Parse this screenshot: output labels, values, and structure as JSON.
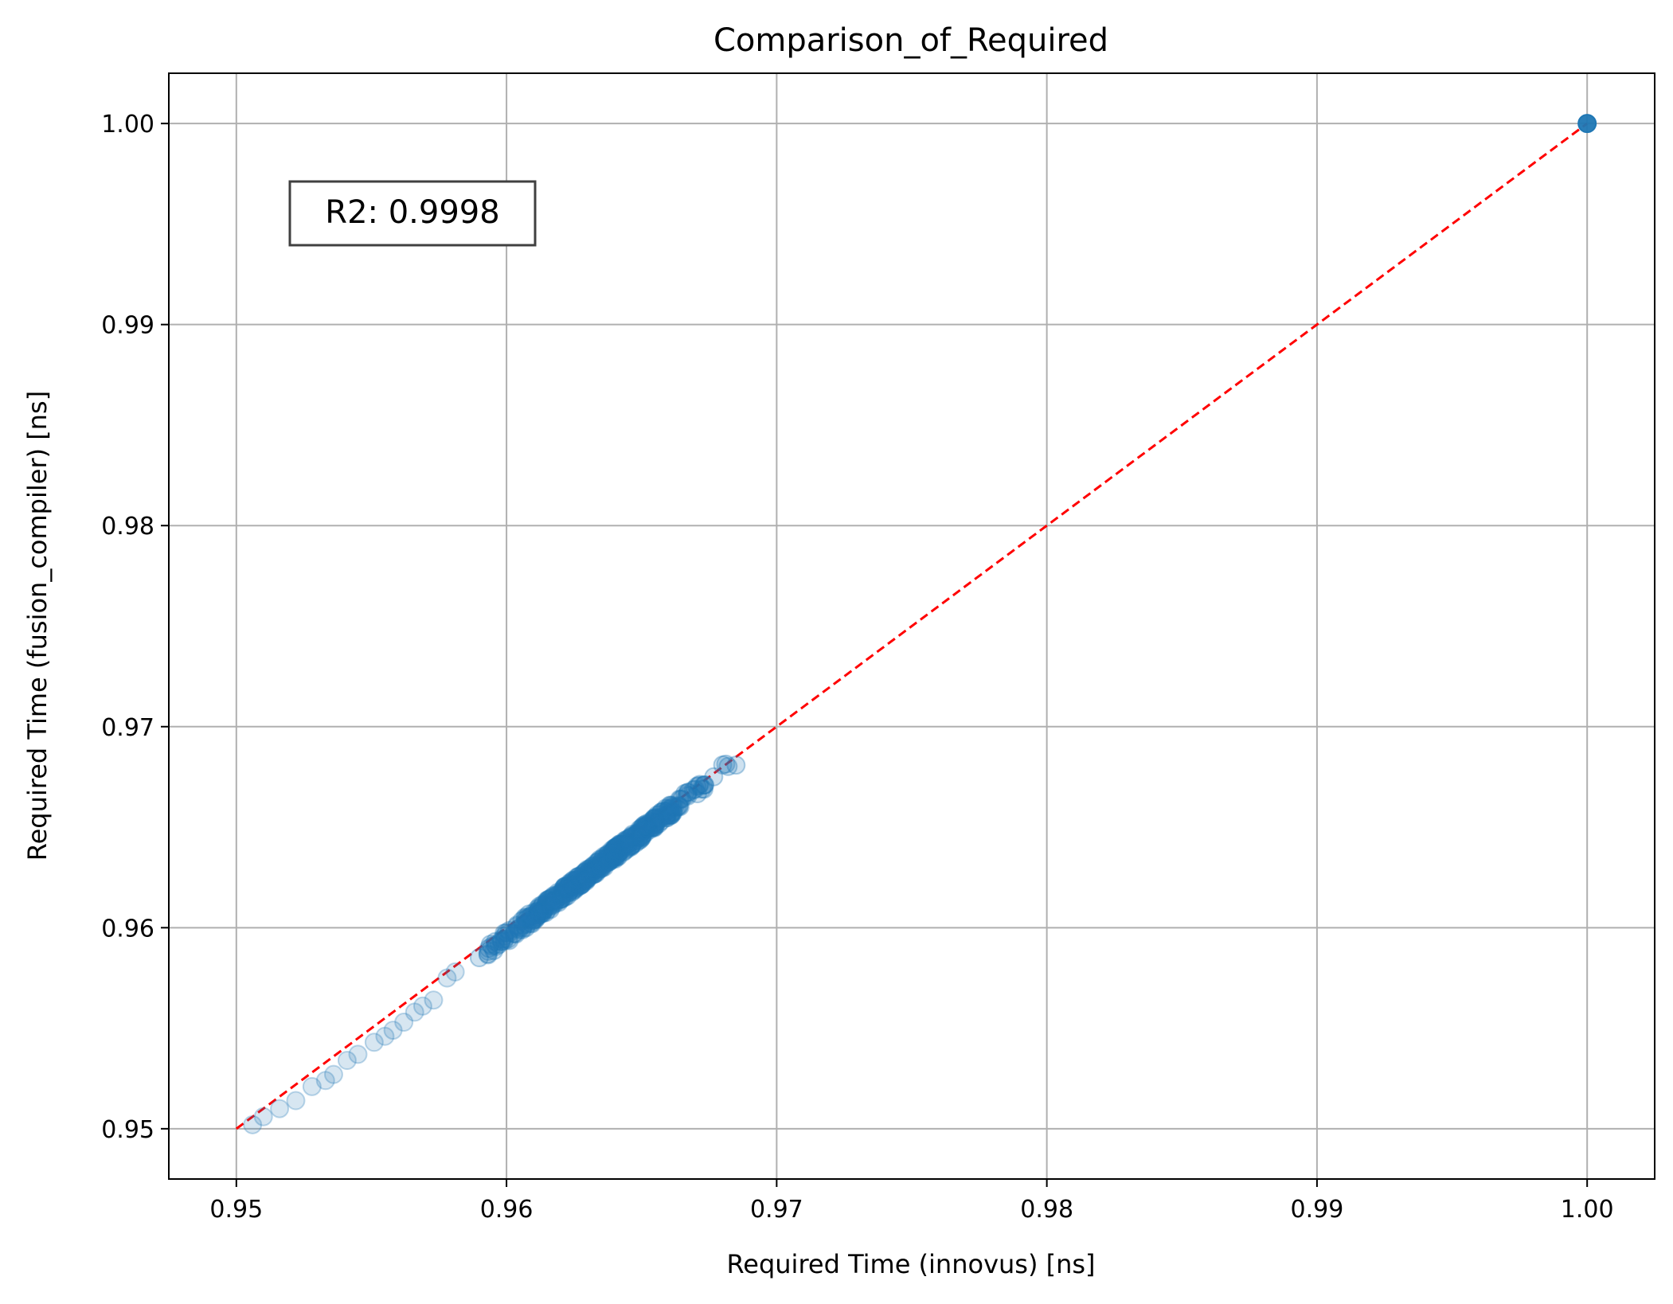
{
  "chart_data": {
    "type": "scatter",
    "title": "Comparison_of_Required",
    "xlabel": "Required Time (innovus) [ns]",
    "ylabel": "Required Time (fusion_compiler) [ns]",
    "xlim": [
      0.9475,
      1.0025
    ],
    "ylim": [
      0.9475,
      1.0025
    ],
    "xticks": [
      0.95,
      0.96,
      0.97,
      0.98,
      0.99,
      1.0
    ],
    "yticks": [
      0.95,
      0.96,
      0.97,
      0.98,
      0.99,
      1.0
    ],
    "xtick_labels": [
      "0.95",
      "0.96",
      "0.97",
      "0.98",
      "0.99",
      "1.00"
    ],
    "ytick_labels": [
      "0.95",
      "0.96",
      "0.97",
      "0.98",
      "0.99",
      "1.00"
    ],
    "grid": true,
    "marker_color": "#1f77b4",
    "reference_line": {
      "from": [
        0.95,
        0.95
      ],
      "to": [
        1.0,
        1.0
      ],
      "color": "#ff0000",
      "style": "dashed"
    },
    "annotation": {
      "text": "R2: 0.9998",
      "x": 0.9525,
      "y": 0.9953
    },
    "cluster": {
      "x_range": [
        0.9505,
        0.969
      ],
      "slope": 1.04,
      "intercept_at": 0.9642,
      "count": 520
    },
    "points": [
      [
        0.9506,
        0.9502
      ],
      [
        0.951,
        0.9506
      ],
      [
        0.9516,
        0.951
      ],
      [
        0.9522,
        0.9514
      ],
      [
        0.9528,
        0.9521
      ],
      [
        0.9533,
        0.9524
      ],
      [
        0.9536,
        0.9527
      ],
      [
        0.9541,
        0.9534
      ],
      [
        0.9545,
        0.9537
      ],
      [
        0.9551,
        0.9543
      ],
      [
        0.9555,
        0.9546
      ],
      [
        0.9558,
        0.9549
      ],
      [
        0.9562,
        0.9553
      ],
      [
        0.9566,
        0.9558
      ],
      [
        0.9569,
        0.9561
      ],
      [
        0.9573,
        0.9564
      ],
      [
        0.9578,
        0.9575
      ],
      [
        0.9581,
        0.9578
      ],
      [
        1.0,
        1.0
      ]
    ]
  }
}
